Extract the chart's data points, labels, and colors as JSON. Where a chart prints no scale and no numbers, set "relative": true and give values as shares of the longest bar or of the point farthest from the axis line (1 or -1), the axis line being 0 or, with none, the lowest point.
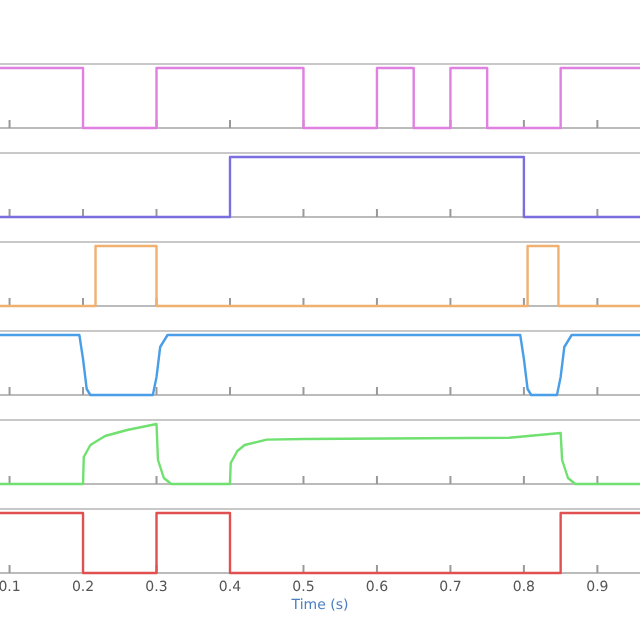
{
  "chart_data": [
    {
      "type": "step",
      "relative": true,
      "tick_labels": false,
      "xlim": [
        0.087,
        0.958
      ],
      "xticks": [
        0.1,
        0.2,
        0.3,
        0.4,
        0.5,
        0.6,
        0.7,
        0.8,
        0.9
      ],
      "series": [
        {
          "color": "#e080e0",
          "x": [
            0.087,
            0.2,
            0.3,
            0.5,
            0.6,
            0.65,
            0.7,
            0.75,
            0.85,
            0.958
          ],
          "values": [
            1,
            0,
            1,
            0,
            1,
            0,
            1,
            0,
            1,
            1
          ]
        }
      ]
    },
    {
      "type": "step",
      "relative": true,
      "tick_labels": false,
      "xlim": [
        0.087,
        0.958
      ],
      "xticks": [
        0.1,
        0.2,
        0.3,
        0.4,
        0.5,
        0.6,
        0.7,
        0.8,
        0.9
      ],
      "series": [
        {
          "color": "#7a6ee0",
          "x": [
            0.087,
            0.4,
            0.8,
            0.958
          ],
          "values": [
            0,
            1,
            0,
            0
          ]
        }
      ]
    },
    {
      "type": "step",
      "relative": true,
      "tick_labels": false,
      "xlim": [
        0.087,
        0.958
      ],
      "xticks": [
        0.1,
        0.2,
        0.3,
        0.4,
        0.5,
        0.6,
        0.7,
        0.8,
        0.9
      ],
      "series": [
        {
          "color": "#f0b070",
          "x": [
            0.087,
            0.217,
            0.3,
            0.805,
            0.847,
            0.958
          ],
          "values": [
            0,
            1,
            0,
            1,
            0,
            0
          ]
        }
      ]
    },
    {
      "type": "line",
      "relative": true,
      "tick_labels": false,
      "xlim": [
        0.087,
        0.958
      ],
      "xticks": [
        0.1,
        0.2,
        0.3,
        0.4,
        0.5,
        0.6,
        0.7,
        0.8,
        0.9
      ],
      "series": [
        {
          "color": "#4a9ee8",
          "x": [
            0.087,
            0.195,
            0.2,
            0.205,
            0.21,
            0.295,
            0.3,
            0.305,
            0.315,
            0.795,
            0.8,
            0.805,
            0.81,
            0.845,
            0.85,
            0.855,
            0.865,
            0.958
          ],
          "values": [
            1,
            1,
            0.6,
            0.1,
            0,
            0,
            0.3,
            0.8,
            1,
            1,
            0.6,
            0.1,
            0,
            0,
            0.3,
            0.8,
            1,
            1
          ]
        }
      ]
    },
    {
      "type": "line",
      "relative": true,
      "tick_labels": false,
      "xlim": [
        0.087,
        0.958
      ],
      "xticks": [
        0.1,
        0.2,
        0.3,
        0.4,
        0.5,
        0.6,
        0.7,
        0.8,
        0.9
      ],
      "series": [
        {
          "color": "#70e070",
          "x": [
            0.087,
            0.2,
            0.201,
            0.21,
            0.23,
            0.26,
            0.3,
            0.302,
            0.31,
            0.32,
            0.4,
            0.401,
            0.41,
            0.42,
            0.45,
            0.5,
            0.78,
            0.85,
            0.852,
            0.86,
            0.87,
            0.958
          ],
          "values": [
            0,
            0,
            0.45,
            0.65,
            0.8,
            0.9,
            1,
            0.4,
            0.1,
            0,
            0,
            0.35,
            0.55,
            0.65,
            0.74,
            0.75,
            0.77,
            0.85,
            0.4,
            0.1,
            0,
            0
          ]
        }
      ]
    },
    {
      "type": "step",
      "relative": true,
      "xlabel": "Time (s)",
      "tick_labels": "x",
      "xlim": [
        0.087,
        0.958
      ],
      "xticks": [
        0.1,
        0.2,
        0.3,
        0.4,
        0.5,
        0.6,
        0.7,
        0.8,
        0.9
      ],
      "series": [
        {
          "color": "#e05050",
          "x": [
            0.087,
            0.2,
            0.3,
            0.4,
            0.85,
            0.958
          ],
          "values": [
            1,
            0,
            1,
            0,
            1,
            1
          ]
        }
      ]
    }
  ]
}
